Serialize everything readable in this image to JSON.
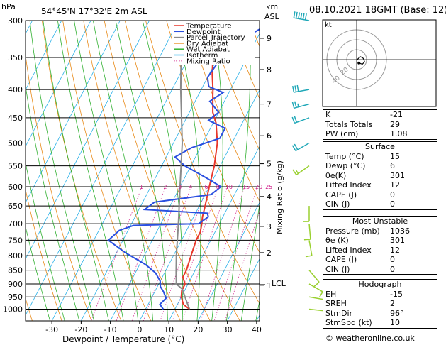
{
  "header": {
    "hpa_label": "hPa",
    "location": "54°45'N  17°32'E  2m  ASL",
    "km_label": "km",
    "asl_label": "ASL",
    "datetime": "08.10.2021  18GMT  (Base: 12)"
  },
  "legend": [
    {
      "label": "Temperature",
      "color": "#e8372a"
    },
    {
      "label": "Dewpoint",
      "color": "#2a4fe0"
    },
    {
      "label": "Parcel Trajectory",
      "color": "#8a8a8a"
    },
    {
      "label": "Dry Adiabat",
      "color": "#e88a18"
    },
    {
      "label": "Wet Adiabat",
      "color": "#30b030"
    },
    {
      "label": "Isotherm",
      "color": "#28b0e8"
    },
    {
      "label": "Mixing Ratio",
      "color": "#d0208a"
    }
  ],
  "chart_data": {
    "type": "line",
    "title": "",
    "xlabel": "Dewpoint / Temperature (°C)",
    "ylabel_right": "Mixing Ratio (g/kg)",
    "x_ticks": [
      -30,
      -20,
      -10,
      0,
      10,
      20,
      30,
      40
    ],
    "xlim": [
      -39,
      41
    ],
    "p_ticks": [
      300,
      350,
      400,
      450,
      500,
      550,
      600,
      650,
      700,
      750,
      800,
      850,
      900,
      950,
      1000
    ],
    "plim": [
      300,
      1050
    ],
    "log_pressure": true,
    "km_ticks": [
      {
        "km": 1,
        "p": 905
      },
      {
        "km": 2,
        "p": 790
      },
      {
        "km": 3,
        "p": 708
      },
      {
        "km": 4,
        "p": 625
      },
      {
        "km": 5,
        "p": 545
      },
      {
        "km": 6,
        "p": 485
      },
      {
        "km": 7,
        "p": 425
      },
      {
        "km": 8,
        "p": 368
      },
      {
        "km": 9,
        "p": 323
      }
    ],
    "lcl": {
      "label": "LCL",
      "p": 900
    },
    "mixing_ratio_labels": [
      "1",
      "2",
      "3",
      "4",
      "6",
      "8",
      "10",
      "15",
      "20",
      "25"
    ],
    "mixing_ratio_values": [
      1,
      2,
      3,
      4,
      6,
      8,
      10,
      15,
      20,
      25
    ],
    "series": [
      {
        "name": "Temperature",
        "color": "#e8372a",
        "points": [
          [
            15,
            1000
          ],
          [
            12,
            980
          ],
          [
            10,
            950
          ],
          [
            9,
            925
          ],
          [
            9,
            900
          ],
          [
            7,
            875
          ],
          [
            7,
            850
          ],
          [
            6,
            800
          ],
          [
            5,
            750
          ],
          [
            5,
            725
          ],
          [
            4,
            700
          ],
          [
            3,
            680
          ],
          [
            2,
            650
          ],
          [
            0,
            600
          ],
          [
            -2,
            550
          ],
          [
            -5,
            500
          ],
          [
            -9,
            460
          ],
          [
            -12,
            440
          ],
          [
            -15,
            410
          ],
          [
            -16,
            400
          ],
          [
            -19,
            375
          ],
          [
            -24,
            330
          ],
          [
            -25,
            310
          ],
          [
            -27,
            300
          ]
        ]
      },
      {
        "name": "Dewpoint",
        "color": "#2a4fe0",
        "points": [
          [
            6,
            1000
          ],
          [
            4,
            980
          ],
          [
            5,
            955
          ],
          [
            3,
            930
          ],
          [
            1,
            910
          ],
          [
            0,
            890
          ],
          [
            -3,
            860
          ],
          [
            -8,
            830
          ],
          [
            -17,
            790
          ],
          [
            -25,
            750
          ],
          [
            -23,
            720
          ],
          [
            -19,
            705
          ],
          [
            3,
            700
          ],
          [
            5,
            680
          ],
          [
            4,
            670
          ],
          [
            -18,
            660
          ],
          [
            -16,
            640
          ],
          [
            2,
            620
          ],
          [
            4,
            600
          ],
          [
            -2,
            580
          ],
          [
            -12,
            550
          ],
          [
            -17,
            530
          ],
          [
            -13,
            510
          ],
          [
            -5,
            490
          ],
          [
            -5,
            470
          ],
          [
            -12,
            455
          ],
          [
            -10,
            440
          ],
          [
            -15,
            420
          ],
          [
            -12,
            405
          ],
          [
            -18,
            395
          ],
          [
            -20,
            380
          ],
          [
            -19,
            355
          ],
          [
            -14,
            330
          ],
          [
            -12,
            315
          ],
          [
            -8,
            302
          ]
        ]
      },
      {
        "name": "Parcel Trajectory",
        "color": "#8a8a8a",
        "points": [
          [
            15,
            1000
          ],
          [
            12,
            960
          ],
          [
            9,
            920
          ],
          [
            6,
            900
          ],
          [
            4,
            860
          ],
          [
            1,
            800
          ],
          [
            -4,
            700
          ],
          [
            -10,
            600
          ],
          [
            -17,
            500
          ],
          [
            -27,
            400
          ],
          [
            -39,
            300
          ]
        ]
      }
    ],
    "wind_barbs": [
      {
        "p": 300,
        "dir": 280,
        "spd": 60
      },
      {
        "p": 400,
        "dir": 260,
        "spd": 30
      },
      {
        "p": 425,
        "dir": 255,
        "spd": 25
      },
      {
        "p": 450,
        "dir": 250,
        "spd": 20
      },
      {
        "p": 500,
        "dir": 240,
        "spd": 20
      },
      {
        "p": 550,
        "dir": 235,
        "spd": 15
      },
      {
        "p": 650,
        "dir": 180,
        "spd": 10
      },
      {
        "p": 700,
        "dir": 175,
        "spd": 10
      },
      {
        "p": 750,
        "dir": 170,
        "spd": 10
      },
      {
        "p": 850,
        "dir": 140,
        "spd": 10
      },
      {
        "p": 900,
        "dir": 120,
        "spd": 10
      },
      {
        "p": 950,
        "dir": 100,
        "spd": 10
      },
      {
        "p": 1000,
        "dir": 96,
        "spd": 10
      }
    ]
  },
  "hodograph": {
    "unit_label": "kt",
    "ring_labels": [
      "20",
      "40"
    ],
    "trace": [
      [
        0.2,
        0.0
      ],
      [
        0.4,
        0.2
      ],
      [
        0.8,
        0.6
      ],
      [
        1.4,
        1.0
      ],
      [
        2.4,
        0.4
      ],
      [
        2.8,
        -0.8
      ],
      [
        2.0,
        -1.6
      ],
      [
        0.8,
        -1.2
      ]
    ],
    "storm_motion": [
      0.8,
      -1.2
    ]
  },
  "indices": [
    {
      "label": "K",
      "value": "-21"
    },
    {
      "label": "Totals Totals",
      "value": "29"
    },
    {
      "label": "PW (cm)",
      "value": "1.08"
    }
  ],
  "surface": {
    "title": "Surface",
    "rows": [
      {
        "label": "Temp (°C)",
        "value": "15"
      },
      {
        "label": "Dewp (°C)",
        "value": "6"
      },
      {
        "label": "θe(K)",
        "value": "301"
      },
      {
        "label": "Lifted Index",
        "value": "12"
      },
      {
        "label": "CAPE (J)",
        "value": "0"
      },
      {
        "label": "CIN (J)",
        "value": "0"
      }
    ]
  },
  "most_unstable": {
    "title": "Most Unstable",
    "rows": [
      {
        "label": "Pressure (mb)",
        "value": "1036"
      },
      {
        "label": "θe (K)",
        "value": "301"
      },
      {
        "label": "Lifted Index",
        "value": "12"
      },
      {
        "label": "CAPE (J)",
        "value": "0"
      },
      {
        "label": "CIN (J)",
        "value": "0"
      }
    ]
  },
  "hodograph_table": {
    "title": "Hodograph",
    "rows": [
      {
        "label": "EH",
        "value": "-15"
      },
      {
        "label": "SREH",
        "value": "2"
      },
      {
        "label": "StmDir",
        "value": "96°"
      },
      {
        "label": "StmSpd (kt)",
        "value": "10"
      }
    ]
  },
  "copyright": "© weatheronline.co.uk"
}
